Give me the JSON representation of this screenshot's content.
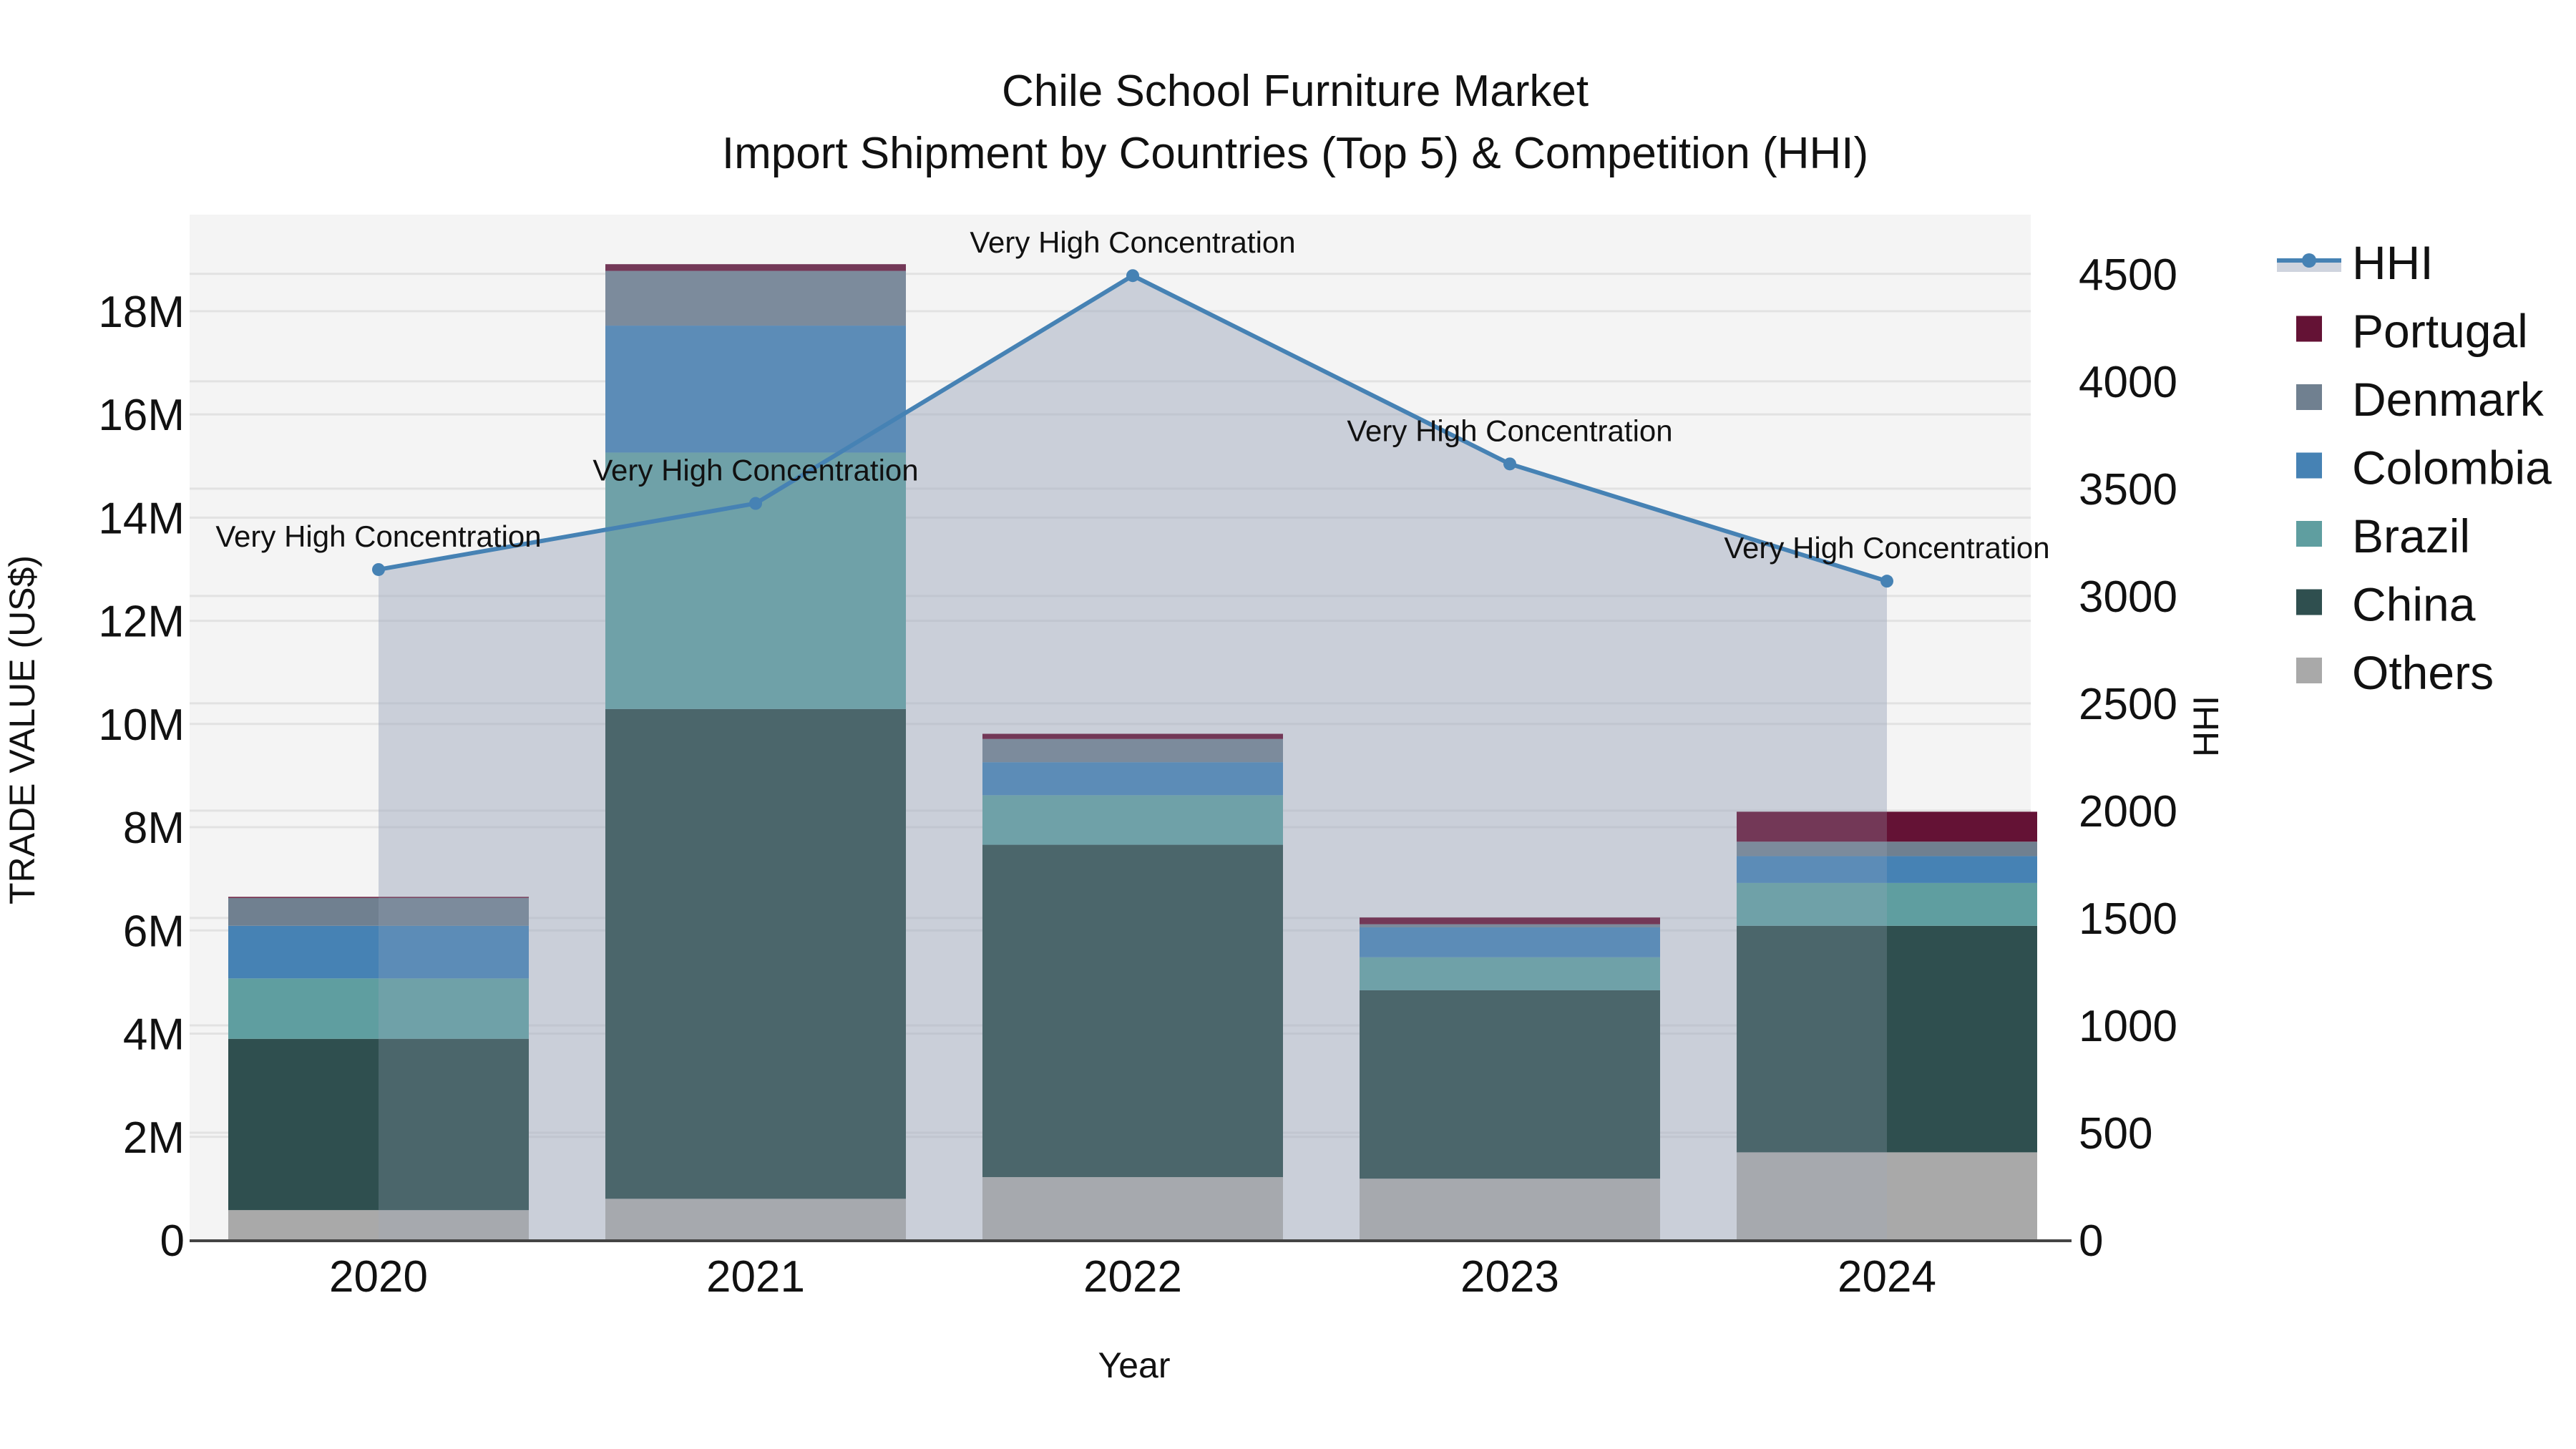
{
  "title": {
    "line1": "Chile School Furniture Market",
    "line2": "Import Shipment by Countries (Top 5) & Competition (HHI)"
  },
  "axes": {
    "x_title": "Year",
    "y_left_title": "TRADE VALUE (US$)",
    "y_right_title": "HHI",
    "y_left_ticks": [
      "0",
      "2M",
      "4M",
      "6M",
      "8M",
      "10M",
      "12M",
      "14M",
      "16M",
      "18M"
    ],
    "y_right_ticks": [
      "0",
      "500",
      "1000",
      "1500",
      "2000",
      "2500",
      "3000",
      "3500",
      "4000",
      "4500"
    ]
  },
  "legend": [
    {
      "name": "HHI",
      "color": "#4682b4",
      "type": "line"
    },
    {
      "name": "Portugal",
      "color": "#641235",
      "type": "box"
    },
    {
      "name": "Denmark",
      "color": "#708090",
      "type": "box"
    },
    {
      "name": "Colombia",
      "color": "#4682b4",
      "type": "box"
    },
    {
      "name": "Brazil",
      "color": "#5f9ea0",
      "type": "box"
    },
    {
      "name": "China",
      "color": "#2f4f4f",
      "type": "box"
    },
    {
      "name": "Others",
      "color": "#a9a9a9",
      "type": "box"
    }
  ],
  "chart_data": {
    "type": "bar",
    "stacked": true,
    "title": "Chile School Furniture Market — Import Shipment by Countries (Top 5) & Competition (HHI)",
    "xlabel": "Year",
    "ylabel": "TRADE VALUE (US$)",
    "y2label": "HHI",
    "categories": [
      "2020",
      "2021",
      "2022",
      "2023",
      "2024"
    ],
    "ylim": [
      0,
      19870000
    ],
    "y2lim": [
      0,
      4776
    ],
    "grid": true,
    "legend_position": "right",
    "series": [
      {
        "name": "Others",
        "color": "#a9a9a9",
        "values": [
          580000,
          800000,
          1220000,
          1190000,
          1700000
        ]
      },
      {
        "name": "China",
        "color": "#2f4f4f",
        "values": [
          3320000,
          9490000,
          6440000,
          3650000,
          4390000
        ]
      },
      {
        "name": "Brazil",
        "color": "#5f9ea0",
        "values": [
          1170000,
          4970000,
          960000,
          640000,
          830000
        ]
      },
      {
        "name": "Colombia",
        "color": "#4682b4",
        "values": [
          1020000,
          2460000,
          640000,
          580000,
          520000
        ]
      },
      {
        "name": "Denmark",
        "color": "#708090",
        "values": [
          540000,
          1060000,
          450000,
          60000,
          280000
        ]
      },
      {
        "name": "Portugal",
        "color": "#641235",
        "values": [
          20000,
          130000,
          100000,
          130000,
          580000
        ]
      }
    ],
    "line_series": {
      "name": "HHI",
      "axis": "right",
      "color": "#4682b4",
      "fill": "tozeroy",
      "values": [
        3123,
        3431,
        4492,
        3615,
        3069
      ]
    },
    "annotations": [
      {
        "x": "2020",
        "text": "Very High Concentration"
      },
      {
        "x": "2021",
        "text": "Very High Concentration"
      },
      {
        "x": "2022",
        "text": "Very High Concentration"
      },
      {
        "x": "2023",
        "text": "Very High Concentration"
      },
      {
        "x": "2024",
        "text": "Very High Concentration"
      }
    ]
  }
}
